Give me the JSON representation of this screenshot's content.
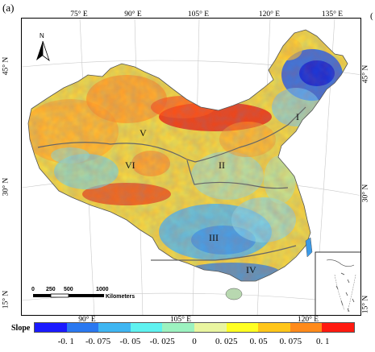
{
  "panel_label": "(a)",
  "corner_char": "(",
  "north_label": "N",
  "top_ticks": [
    "75° E",
    "90° E",
    "105° E",
    "120° E",
    "135° E"
  ],
  "bottom_ticks": [
    "90° E",
    "105° E",
    "120° E"
  ],
  "left_ticks": [
    "45° N",
    "30° N",
    "15° N"
  ],
  "right_ticks": [
    "45° N",
    "30° N",
    "15° N"
  ],
  "regions": [
    "I",
    "II",
    "V",
    "VI",
    "III",
    "IV"
  ],
  "scale_bar": {
    "labels": [
      "0",
      "250",
      "500",
      "1000"
    ],
    "unit": "Kilometers"
  },
  "legend": {
    "title": "Slope",
    "labels": [
      "-0. 1",
      "-0. 075",
      "-0. 05",
      "-0. 025",
      "0",
      "0. 025",
      "0. 05",
      "0. 075",
      "0. 1"
    ],
    "colors": [
      "#1a1aff",
      "#2a78f0",
      "#3fb6f2",
      "#5ef2f0",
      "#9cf2c0",
      "#e9f5a0",
      "#ffff22",
      "#ffc61a",
      "#ff8a1a",
      "#ff1a10"
    ]
  },
  "colors": {
    "warm": "#ff9a2a",
    "hot": "#e8301a",
    "yellow": "#f4e83a",
    "cyan": "#6ad8f0",
    "blue": "#2a60e8",
    "deep_blue": "#1a2ad0",
    "boundary": "#666666"
  }
}
